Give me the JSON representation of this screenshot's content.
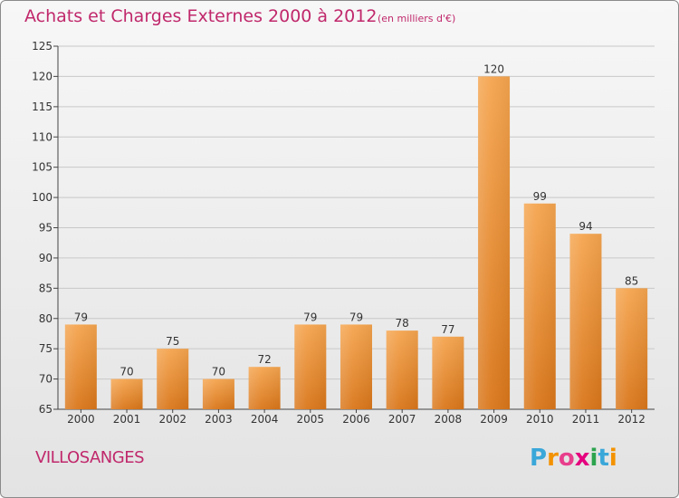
{
  "header": {
    "title": "Achats et Charges Externes 2000 à 2012",
    "unit": "(en milliers d'€)"
  },
  "footer": {
    "commune": "VILLOSANGES",
    "logo_letters": [
      "P",
      "r",
      "o",
      "x",
      "i",
      "t",
      "i"
    ],
    "logo_colors": [
      "#3aa7d9",
      "#f39200",
      "#e83e8c",
      "#e5007e",
      "#2da44e",
      "#3aa7d9",
      "#f39200"
    ]
  },
  "colors": {
    "text": "#c0286b",
    "bar_top": "#f5a54f",
    "bar_bottom": "#d9761a",
    "gridline": "#c8c8c8"
  },
  "chart_data": {
    "type": "bar",
    "title": "Achats et Charges Externes 2000 à 2012",
    "subtitle": "(en milliers d'€)",
    "categories": [
      "2000",
      "2001",
      "2002",
      "2003",
      "2004",
      "2005",
      "2006",
      "2007",
      "2008",
      "2009",
      "2010",
      "2011",
      "2012"
    ],
    "values": [
      79,
      70,
      75,
      70,
      72,
      79,
      79,
      78,
      77,
      120,
      99,
      94,
      85
    ],
    "ylim": [
      65,
      125
    ],
    "yticks": [
      65,
      70,
      75,
      80,
      85,
      90,
      95,
      100,
      105,
      110,
      115,
      120,
      125
    ],
    "grid": true,
    "legend": "none"
  }
}
